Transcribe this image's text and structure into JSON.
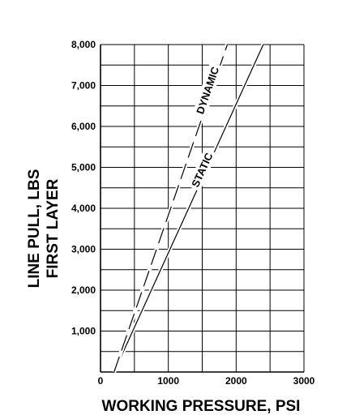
{
  "chart_data": {
    "type": "line",
    "xlabel": "WORKING PRESSURE, PSI",
    "ylabel_lines": [
      "LINE PULL, LBS",
      "FIRST LAYER"
    ],
    "xlim": [
      0,
      3000
    ],
    "ylim": [
      0,
      8000
    ],
    "x_ticks": [
      {
        "value": 0,
        "label": "0"
      },
      {
        "value": 1000,
        "label": "1000"
      },
      {
        "value": 2000,
        "label": "2000"
      },
      {
        "value": 3000,
        "label": "3000"
      }
    ],
    "y_ticks": [
      {
        "value": 1000,
        "label": "1,000"
      },
      {
        "value": 2000,
        "label": "2,000"
      },
      {
        "value": 3000,
        "label": "3,000"
      },
      {
        "value": 4000,
        "label": "4,000"
      },
      {
        "value": 5000,
        "label": "5,000"
      },
      {
        "value": 6000,
        "label": "6,000"
      },
      {
        "value": 7000,
        "label": "7,000"
      },
      {
        "value": 8000,
        "label": "8,000"
      }
    ],
    "grid": {
      "x_step": 500,
      "y_step": 500
    },
    "series": [
      {
        "name": "STATIC",
        "style": "solid",
        "x": [
          200,
          2400
        ],
        "y": [
          0,
          8000
        ]
      },
      {
        "name": "DYNAMIC",
        "style": "dashed",
        "x": [
          200,
          1870
        ],
        "y": [
          0,
          8000
        ]
      }
    ]
  }
}
